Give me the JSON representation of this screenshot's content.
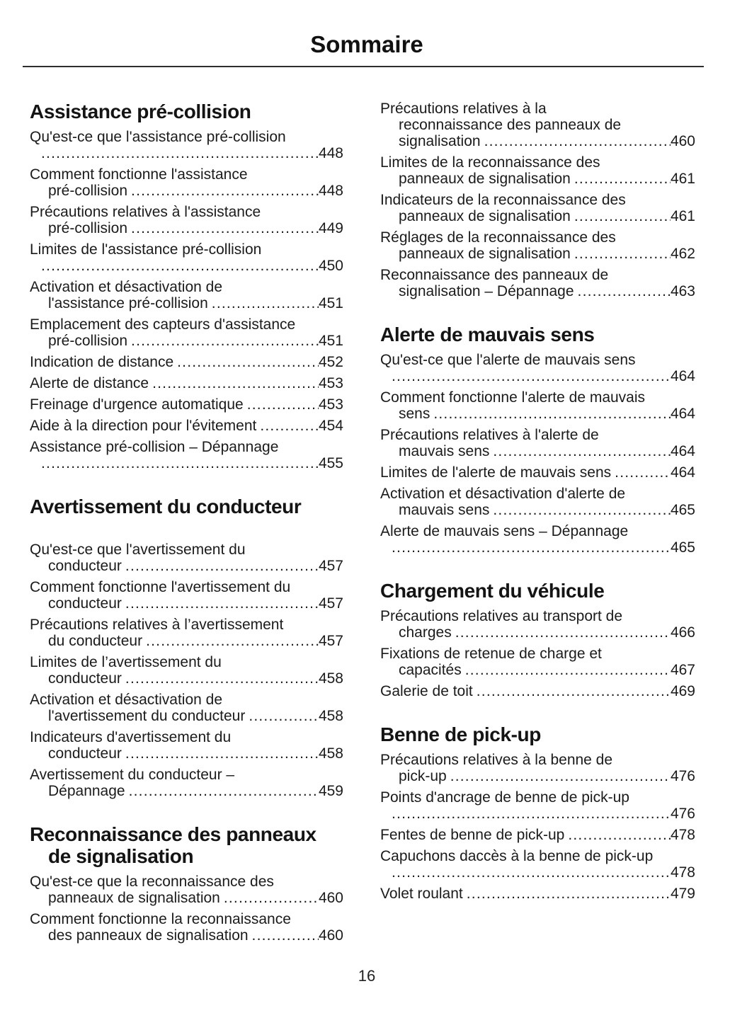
{
  "title": "Sommaire",
  "footer": {
    "page_number": "16"
  },
  "columns": [
    {
      "sections": [
        {
          "heading_lines": [
            "Assistance pré-collision"
          ],
          "entries": [
            {
              "lines": [
                "Qu'est-ce que l'assistance pré-collision"
              ],
              "tail": "",
              "page": "448"
            },
            {
              "lines": [
                "Comment fonctionne l'assistance"
              ],
              "tail": "pré-collision",
              "page": "448"
            },
            {
              "lines": [
                "Précautions relatives à l'assistance"
              ],
              "tail": "pré-collision",
              "page": "449"
            },
            {
              "lines": [
                "Limites de l'assistance pré-collision"
              ],
              "tail": "",
              "page": "450"
            },
            {
              "lines": [
                "Activation et désactivation de"
              ],
              "tail": "l'assistance pré-collision",
              "page": "451"
            },
            {
              "lines": [
                "Emplacement des capteurs d'assistance"
              ],
              "tail": "pré-collision",
              "page": "451"
            },
            {
              "lines": [],
              "tail": "Indication de distance",
              "page": "452"
            },
            {
              "lines": [],
              "tail": "Alerte de distance",
              "page": "453"
            },
            {
              "lines": [],
              "tail": "Freinage d'urgence automatique",
              "page": "453"
            },
            {
              "lines": [],
              "tail": "Aide à la direction pour l'évitement",
              "page": "454"
            },
            {
              "lines": [
                "Assistance pré-collision – Dépannage"
              ],
              "tail": "",
              "page": "455"
            }
          ]
        },
        {
          "heading_lines": [
            "Avertissement du conducteur"
          ],
          "extra_gap": true,
          "entries": [
            {
              "lines": [
                "Qu'est-ce que l'avertissement du"
              ],
              "tail": "conducteur",
              "page": "457"
            },
            {
              "lines": [
                "Comment fonctionne l'avertissement du"
              ],
              "tail": "conducteur",
              "page": "457"
            },
            {
              "lines": [
                "Précautions relatives à l’avertissement"
              ],
              "tail": "du conducteur",
              "page": "457"
            },
            {
              "lines": [
                "Limites de l’avertissement du"
              ],
              "tail": "conducteur",
              "page": "458"
            },
            {
              "lines": [
                "Activation et désactivation de"
              ],
              "tail": "l'avertissement du conducteur",
              "page": "458"
            },
            {
              "lines": [
                "Indicateurs d'avertissement du"
              ],
              "tail": "conducteur",
              "page": "458"
            },
            {
              "lines": [
                "Avertissement du conducteur –"
              ],
              "tail": "Dépannage",
              "page": "459"
            }
          ]
        },
        {
          "heading_lines": [
            "Reconnaissance des panneaux",
            "de signalisation"
          ],
          "entries": [
            {
              "lines": [
                "Qu'est-ce que la reconnaissance des"
              ],
              "tail": "panneaux de signalisation",
              "page": "460"
            },
            {
              "lines": [
                "Comment fonctionne la reconnaissance"
              ],
              "tail": "des panneaux de signalisation",
              "page": "460"
            }
          ]
        }
      ]
    },
    {
      "sections": [
        {
          "entries": [
            {
              "lines": [
                "Précautions relatives à la",
                "reconnaissance des panneaux de"
              ],
              "tail": "signalisation",
              "page": "460"
            },
            {
              "lines": [
                "Limites de la reconnaissance des"
              ],
              "tail": "panneaux de signalisation",
              "page": "461"
            },
            {
              "lines": [
                "Indicateurs de la reconnaissance des"
              ],
              "tail": "panneaux de signalisation",
              "page": "461"
            },
            {
              "lines": [
                "Réglages de la reconnaissance des"
              ],
              "tail": "panneaux de signalisation",
              "page": "462"
            },
            {
              "lines": [
                "Reconnaissance des panneaux de"
              ],
              "tail": "signalisation – Dépannage",
              "page": "463"
            }
          ]
        },
        {
          "heading_lines": [
            "Alerte de mauvais sens"
          ],
          "entries": [
            {
              "lines": [
                "Qu'est-ce que l'alerte de mauvais sens"
              ],
              "tail": "",
              "page": "464"
            },
            {
              "lines": [
                "Comment fonctionne l'alerte de mauvais"
              ],
              "tail": "sens",
              "page": "464"
            },
            {
              "lines": [
                "Précautions relatives à l'alerte de"
              ],
              "tail": "mauvais sens",
              "page": "464"
            },
            {
              "lines": [],
              "tail": "Limites de l'alerte de mauvais sens",
              "page": "464"
            },
            {
              "lines": [
                "Activation et désactivation d'alerte de"
              ],
              "tail": "mauvais sens",
              "page": "465"
            },
            {
              "lines": [
                "Alerte de mauvais sens – Dépannage"
              ],
              "tail": "",
              "page": "465"
            }
          ]
        },
        {
          "heading_lines": [
            "Chargement du véhicule"
          ],
          "entries": [
            {
              "lines": [
                "Précautions relatives au transport de"
              ],
              "tail": "charges",
              "page": "466"
            },
            {
              "lines": [
                "Fixations de retenue de charge et"
              ],
              "tail": "capacités",
              "page": "467"
            },
            {
              "lines": [],
              "tail": "Galerie de toit",
              "page": "469"
            }
          ]
        },
        {
          "heading_lines": [
            "Benne de pick-up"
          ],
          "entries": [
            {
              "lines": [
                "Précautions relatives à la benne de"
              ],
              "tail": "pick-up",
              "page": "476"
            },
            {
              "lines": [
                "Points d'ancrage de benne de pick-up"
              ],
              "tail": "",
              "page": "476"
            },
            {
              "lines": [],
              "tail": "Fentes de benne de pick-up",
              "page": "478"
            },
            {
              "lines": [
                "Capuchons daccès à la benne de pick-up"
              ],
              "tail": "",
              "page": "478"
            },
            {
              "lines": [],
              "tail": "Volet roulant",
              "page": "479"
            }
          ]
        }
      ]
    }
  ]
}
